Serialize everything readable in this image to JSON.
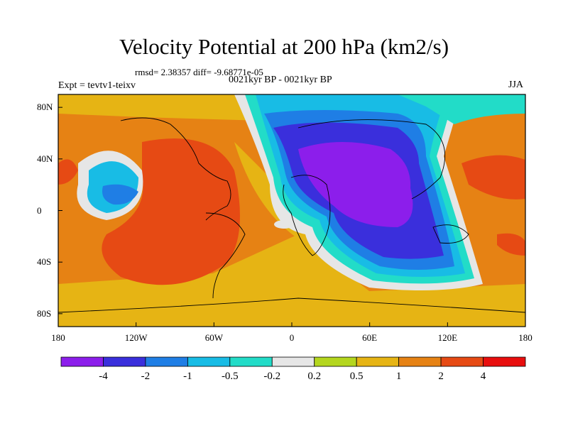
{
  "title": "Velocity Potential at 200 hPa (km2/s)",
  "stats": "rmsd= 2.38357 diff= -9.68771e-05",
  "experiment": "Expt = tevtv1-teixv",
  "period": "0021kyr BP - 0021kyr BP",
  "season": "JJA",
  "lat_labels": [
    "80N",
    "40N",
    "0",
    "40S",
    "80S"
  ],
  "lon_labels": [
    "180",
    "120W",
    "60W",
    "0",
    "60E",
    "120E",
    "180"
  ],
  "colorbar": {
    "labels": [
      "-4",
      "-2",
      "-1",
      "-0.5",
      "-0.2",
      "0.2",
      "0.5",
      "1",
      "2",
      "4"
    ],
    "colors": [
      "#8c1eeb",
      "#3a2fdc",
      "#1f7ee5",
      "#18bce5",
      "#22dcc8",
      "#e6e6e6",
      "#b4d61e",
      "#e6b414",
      "#e68214",
      "#e64a14",
      "#e80e0e"
    ]
  }
}
